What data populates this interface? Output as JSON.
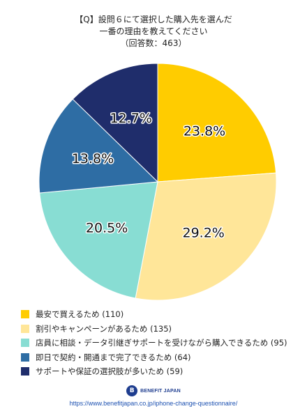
{
  "title": {
    "line1": "【Q】設問６にて選択した購入先を選んだ",
    "line2": "一番の理由を教えてください",
    "line3": "（回答数：463）"
  },
  "chart_data": {
    "type": "pie",
    "start_angle_deg": 0,
    "direction": "clockwise",
    "slices": [
      {
        "label": "最安で買えるため (110)",
        "value": 23.8,
        "count": 110,
        "display": "23.8%",
        "color": "#FFCC00"
      },
      {
        "label": "割引やキャンペーンがあるため (135)",
        "value": 29.2,
        "count": 135,
        "display": "29.2%",
        "color": "#FFE699"
      },
      {
        "label": "店員に相談・データ引継ぎサポートを受けながら購入できるため (95)",
        "value": 20.5,
        "count": 95,
        "display": "20.5%",
        "color": "#88DDD3"
      },
      {
        "label": "即日で契約・開通まで完了できるため (64)",
        "value": 13.8,
        "count": 64,
        "display": "13.8%",
        "color": "#2E6DA4"
      },
      {
        "label": "サポートや保証の選択肢が多いため (59)",
        "value": 12.7,
        "count": 59,
        "display": "12.7%",
        "color": "#1F2D6B"
      }
    ]
  },
  "footer": {
    "logo_mark": "B",
    "logo_text": "BENEFIT JAPAN",
    "url": "https://www.benefitjapan.co.jp/iphone-change-questionnaire/"
  }
}
